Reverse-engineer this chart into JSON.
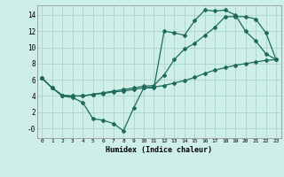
{
  "xlabel": "Humidex (Indice chaleur)",
  "bg_color": "#ceeee8",
  "grid_color": "#aad4cc",
  "line_color": "#1e6b5e",
  "line1_x": [
    0,
    1,
    2,
    3,
    4,
    5,
    6,
    7,
    8,
    9,
    10,
    11,
    12,
    13,
    14,
    15,
    16,
    17,
    18,
    19,
    20,
    21,
    22,
    23
  ],
  "line1_y": [
    6.2,
    5.0,
    4.0,
    3.8,
    3.2,
    1.2,
    1.0,
    0.6,
    -0.3,
    2.5,
    5.0,
    5.0,
    12.0,
    11.8,
    11.5,
    13.3,
    14.6,
    14.5,
    14.6,
    14.0,
    12.0,
    10.8,
    9.2,
    8.5
  ],
  "line2_x": [
    0,
    1,
    2,
    3,
    4,
    5,
    6,
    7,
    8,
    9,
    10,
    11,
    12,
    13,
    14,
    15,
    16,
    17,
    18,
    19,
    20,
    21,
    22,
    23
  ],
  "line2_y": [
    6.2,
    5.0,
    4.1,
    4.0,
    4.0,
    4.2,
    4.4,
    4.6,
    4.8,
    5.0,
    5.2,
    5.3,
    6.6,
    8.5,
    9.8,
    10.5,
    11.5,
    12.5,
    13.8,
    13.8,
    13.8,
    13.5,
    11.8,
    8.5
  ],
  "line3_x": [
    0,
    1,
    2,
    3,
    4,
    5,
    6,
    7,
    8,
    9,
    10,
    11,
    12,
    13,
    14,
    15,
    16,
    17,
    18,
    19,
    20,
    21,
    22,
    23
  ],
  "line3_y": [
    6.2,
    5.0,
    4.0,
    4.0,
    4.0,
    4.2,
    4.3,
    4.5,
    4.6,
    4.8,
    5.0,
    5.1,
    5.3,
    5.6,
    5.9,
    6.3,
    6.8,
    7.2,
    7.5,
    7.8,
    8.0,
    8.2,
    8.4,
    8.5
  ],
  "xlim": [
    -0.5,
    23.5
  ],
  "ylim": [
    -1.2,
    15.2
  ],
  "yticks": [
    0,
    2,
    4,
    6,
    8,
    10,
    12,
    14
  ],
  "ytick_labels": [
    "-0",
    "2",
    "4",
    "6",
    "8",
    "10",
    "12",
    "14"
  ],
  "xticks": [
    0,
    1,
    2,
    3,
    4,
    5,
    6,
    7,
    8,
    9,
    10,
    11,
    12,
    13,
    14,
    15,
    16,
    17,
    18,
    19,
    20,
    21,
    22,
    23
  ]
}
